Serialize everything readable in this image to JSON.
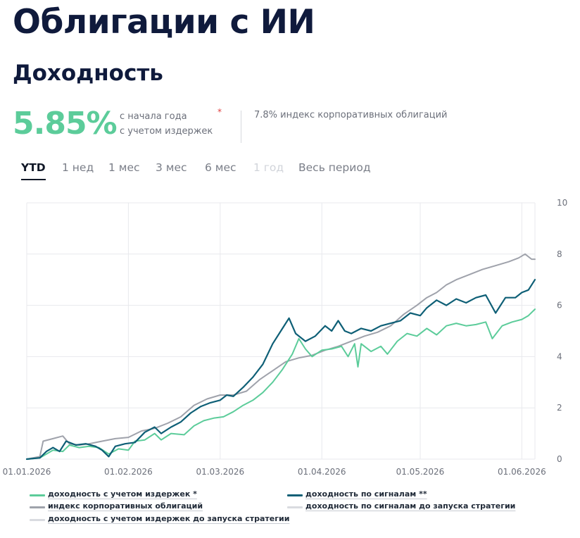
{
  "header": {
    "title": "Облигации с ИИ",
    "section_title": "Доходность"
  },
  "summary": {
    "value": "5.85%",
    "caption_line1": "с начала года",
    "caption_line2": "с учетом издержек",
    "asterisk": "*",
    "index_text": "7.8% индекс корпоративных облигаций"
  },
  "tabs": [
    {
      "label": "YTD",
      "active": true,
      "disabled": false
    },
    {
      "label": "1 нед",
      "active": false,
      "disabled": false
    },
    {
      "label": "1 мес",
      "active": false,
      "disabled": false
    },
    {
      "label": "3 мес",
      "active": false,
      "disabled": false
    },
    {
      "label": "6 мес",
      "active": false,
      "disabled": false
    },
    {
      "label": "1 год",
      "active": false,
      "disabled": true
    },
    {
      "label": "Весь период",
      "active": false,
      "disabled": false
    }
  ],
  "colors": {
    "costs": "#5ccc9a",
    "signals": "#0e5f76",
    "index": "#9fa2ab",
    "pre_launch": "#d9dbe0",
    "grid": "#e8e9ed",
    "axis_text": "#6b6f7a",
    "accent_value": "#5ccc9a"
  },
  "chart_data": {
    "type": "line",
    "x_start": "2026-01-01",
    "x_end": "2026-06-05",
    "ylim": [
      0,
      10
    ],
    "yticks": [
      "0",
      "2",
      "4",
      "6",
      "8",
      "10"
    ],
    "xticks": [
      {
        "date": "2026-01-01",
        "label": "01.01.2026"
      },
      {
        "date": "2026-02-01",
        "label": "01.02.2026"
      },
      {
        "date": "2026-03-01",
        "label": "01.03.2026"
      },
      {
        "date": "2026-04-01",
        "label": "01.04.2026"
      },
      {
        "date": "2026-05-01",
        "label": "01.05.2026"
      },
      {
        "date": "2026-06-01",
        "label": "01.06.2026"
      }
    ],
    "grid": true,
    "legend_position": "bottom",
    "series": [
      {
        "key": "costs",
        "name": "доходность с учетом издержек *",
        "points": [
          [
            "2026-01-01",
            0
          ],
          [
            "2026-01-05",
            0.05
          ],
          [
            "2026-01-09",
            0.35
          ],
          [
            "2026-01-12",
            0.3
          ],
          [
            "2026-01-14",
            0.55
          ],
          [
            "2026-01-17",
            0.45
          ],
          [
            "2026-01-20",
            0.5
          ],
          [
            "2026-01-23",
            0.45
          ],
          [
            "2026-01-26",
            0.2
          ],
          [
            "2026-01-29",
            0.4
          ],
          [
            "2026-02-01",
            0.35
          ],
          [
            "2026-02-03",
            0.7
          ],
          [
            "2026-02-06",
            0.75
          ],
          [
            "2026-02-09",
            1.0
          ],
          [
            "2026-02-11",
            0.75
          ],
          [
            "2026-02-14",
            1.0
          ],
          [
            "2026-02-18",
            0.95
          ],
          [
            "2026-02-21",
            1.3
          ],
          [
            "2026-02-24",
            1.5
          ],
          [
            "2026-02-27",
            1.6
          ],
          [
            "2026-03-02",
            1.65
          ],
          [
            "2026-03-05",
            1.85
          ],
          [
            "2026-03-08",
            2.1
          ],
          [
            "2026-03-11",
            2.3
          ],
          [
            "2026-03-14",
            2.6
          ],
          [
            "2026-03-17",
            3.0
          ],
          [
            "2026-03-20",
            3.5
          ],
          [
            "2026-03-23",
            4.1
          ],
          [
            "2026-03-25",
            4.7
          ],
          [
            "2026-03-27",
            4.3
          ],
          [
            "2026-03-29",
            4.0
          ],
          [
            "2026-04-01",
            4.25
          ],
          [
            "2026-04-04",
            4.3
          ],
          [
            "2026-04-07",
            4.4
          ],
          [
            "2026-04-09",
            4.0
          ],
          [
            "2026-04-11",
            4.5
          ],
          [
            "2026-04-12",
            3.6
          ],
          [
            "2026-04-13",
            4.5
          ],
          [
            "2026-04-16",
            4.2
          ],
          [
            "2026-04-19",
            4.4
          ],
          [
            "2026-04-21",
            4.1
          ],
          [
            "2026-04-24",
            4.6
          ],
          [
            "2026-04-27",
            4.9
          ],
          [
            "2026-04-30",
            4.8
          ],
          [
            "2026-05-03",
            5.1
          ],
          [
            "2026-05-06",
            4.85
          ],
          [
            "2026-05-09",
            5.2
          ],
          [
            "2026-05-12",
            5.3
          ],
          [
            "2026-05-15",
            5.2
          ],
          [
            "2026-05-18",
            5.25
          ],
          [
            "2026-05-21",
            5.35
          ],
          [
            "2026-05-23",
            4.7
          ],
          [
            "2026-05-26",
            5.2
          ],
          [
            "2026-05-29",
            5.35
          ],
          [
            "2026-06-01",
            5.45
          ],
          [
            "2026-06-03",
            5.6
          ],
          [
            "2026-06-05",
            5.85
          ]
        ]
      },
      {
        "key": "signals",
        "name": "доходность по сигналам **",
        "points": [
          [
            "2026-01-01",
            0
          ],
          [
            "2026-01-05",
            0.05
          ],
          [
            "2026-01-07",
            0.3
          ],
          [
            "2026-01-09",
            0.45
          ],
          [
            "2026-01-11",
            0.3
          ],
          [
            "2026-01-13",
            0.7
          ],
          [
            "2026-01-16",
            0.55
          ],
          [
            "2026-01-19",
            0.6
          ],
          [
            "2026-01-22",
            0.5
          ],
          [
            "2026-01-24",
            0.35
          ],
          [
            "2026-01-26",
            0.1
          ],
          [
            "2026-01-28",
            0.5
          ],
          [
            "2026-01-31",
            0.6
          ],
          [
            "2026-02-03",
            0.65
          ],
          [
            "2026-02-06",
            1.05
          ],
          [
            "2026-02-09",
            1.25
          ],
          [
            "2026-02-11",
            1.0
          ],
          [
            "2026-02-14",
            1.25
          ],
          [
            "2026-02-17",
            1.45
          ],
          [
            "2026-02-20",
            1.8
          ],
          [
            "2026-02-23",
            2.05
          ],
          [
            "2026-02-26",
            2.2
          ],
          [
            "2026-03-01",
            2.3
          ],
          [
            "2026-03-03",
            2.5
          ],
          [
            "2026-03-05",
            2.45
          ],
          [
            "2026-03-08",
            2.8
          ],
          [
            "2026-03-11",
            3.2
          ],
          [
            "2026-03-14",
            3.7
          ],
          [
            "2026-03-17",
            4.5
          ],
          [
            "2026-03-20",
            5.1
          ],
          [
            "2026-03-22",
            5.5
          ],
          [
            "2026-03-24",
            4.9
          ],
          [
            "2026-03-27",
            4.6
          ],
          [
            "2026-03-30",
            4.8
          ],
          [
            "2026-04-02",
            5.2
          ],
          [
            "2026-04-04",
            5.0
          ],
          [
            "2026-04-06",
            5.4
          ],
          [
            "2026-04-08",
            5.0
          ],
          [
            "2026-04-10",
            4.9
          ],
          [
            "2026-04-13",
            5.1
          ],
          [
            "2026-04-16",
            5.0
          ],
          [
            "2026-04-19",
            5.2
          ],
          [
            "2026-04-22",
            5.3
          ],
          [
            "2026-04-25",
            5.4
          ],
          [
            "2026-04-28",
            5.7
          ],
          [
            "2026-05-01",
            5.6
          ],
          [
            "2026-05-03",
            5.9
          ],
          [
            "2026-05-06",
            6.2
          ],
          [
            "2026-05-09",
            6.0
          ],
          [
            "2026-05-12",
            6.25
          ],
          [
            "2026-05-15",
            6.1
          ],
          [
            "2026-05-18",
            6.3
          ],
          [
            "2026-05-21",
            6.4
          ],
          [
            "2026-05-24",
            5.7
          ],
          [
            "2026-05-27",
            6.3
          ],
          [
            "2026-05-30",
            6.3
          ],
          [
            "2026-06-01",
            6.5
          ],
          [
            "2026-06-03",
            6.6
          ],
          [
            "2026-06-05",
            7.0
          ]
        ]
      },
      {
        "key": "index",
        "name": "индекс корпоративных облигаций",
        "points": [
          [
            "2026-01-01",
            0
          ],
          [
            "2026-01-05",
            0.1
          ],
          [
            "2026-01-06",
            0.7
          ],
          [
            "2026-01-09",
            0.8
          ],
          [
            "2026-01-12",
            0.9
          ],
          [
            "2026-01-14",
            0.6
          ],
          [
            "2026-01-17",
            0.55
          ],
          [
            "2026-01-20",
            0.6
          ],
          [
            "2026-01-24",
            0.7
          ],
          [
            "2026-01-28",
            0.8
          ],
          [
            "2026-02-01",
            0.85
          ],
          [
            "2026-02-05",
            1.1
          ],
          [
            "2026-02-09",
            1.2
          ],
          [
            "2026-02-13",
            1.4
          ],
          [
            "2026-02-17",
            1.65
          ],
          [
            "2026-02-21",
            2.1
          ],
          [
            "2026-02-25",
            2.35
          ],
          [
            "2026-03-01",
            2.5
          ],
          [
            "2026-03-05",
            2.5
          ],
          [
            "2026-03-09",
            2.65
          ],
          [
            "2026-03-13",
            3.1
          ],
          [
            "2026-03-17",
            3.45
          ],
          [
            "2026-03-21",
            3.8
          ],
          [
            "2026-03-25",
            3.95
          ],
          [
            "2026-03-29",
            4.05
          ],
          [
            "2026-04-02",
            4.25
          ],
          [
            "2026-04-06",
            4.4
          ],
          [
            "2026-04-10",
            4.6
          ],
          [
            "2026-04-14",
            4.8
          ],
          [
            "2026-04-18",
            4.95
          ],
          [
            "2026-04-22",
            5.2
          ],
          [
            "2026-04-26",
            5.65
          ],
          [
            "2026-04-30",
            6.0
          ],
          [
            "2026-05-03",
            6.3
          ],
          [
            "2026-05-06",
            6.5
          ],
          [
            "2026-05-09",
            6.8
          ],
          [
            "2026-05-12",
            7.0
          ],
          [
            "2026-05-16",
            7.2
          ],
          [
            "2026-05-20",
            7.4
          ],
          [
            "2026-05-24",
            7.55
          ],
          [
            "2026-05-28",
            7.7
          ],
          [
            "2026-05-31",
            7.85
          ],
          [
            "2026-06-02",
            8.0
          ],
          [
            "2026-06-04",
            7.8
          ],
          [
            "2026-06-05",
            7.8
          ]
        ]
      },
      {
        "key": "pre_launch",
        "name": "доходность по сигналам до запуска стратегии",
        "points": []
      },
      {
        "key": "pre_launch_costs",
        "name": "доходность с учетом издержек до запуска стратегии",
        "points": []
      }
    ]
  }
}
